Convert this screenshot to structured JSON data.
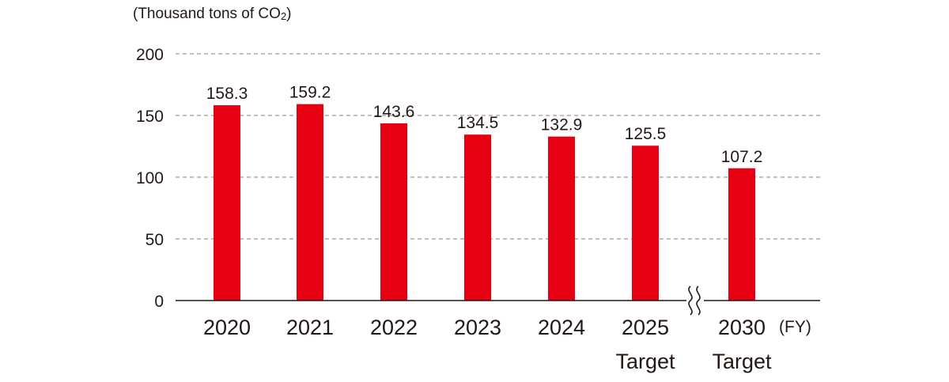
{
  "chart_data": {
    "type": "bar",
    "unit_label": "(Thousand tons of CO",
    "unit_subscript": "2",
    "unit_close": ")",
    "x_unit": "(FY)",
    "categories": [
      {
        "year": "2020",
        "sub": ""
      },
      {
        "year": "2021",
        "sub": ""
      },
      {
        "year": "2022",
        "sub": ""
      },
      {
        "year": "2023",
        "sub": ""
      },
      {
        "year": "2024",
        "sub": ""
      },
      {
        "year": "2025",
        "sub": "Target"
      },
      {
        "year": "2030",
        "sub": "Target"
      }
    ],
    "values": [
      158.3,
      159.2,
      143.6,
      134.5,
      132.9,
      125.5,
      107.2
    ],
    "value_labels": [
      "158.3",
      "159.2",
      "143.6",
      "134.5",
      "132.9",
      "125.5",
      "107.2"
    ],
    "ylim": [
      0,
      200
    ],
    "yticks": [
      "0",
      "50",
      "100",
      "150",
      "200"
    ],
    "axis_break": "between 2025 and 2030",
    "grid": "dashed horizontal",
    "bar_color": "#e60012",
    "text_color": "#231815",
    "grid_color": "#9c9c9c"
  }
}
